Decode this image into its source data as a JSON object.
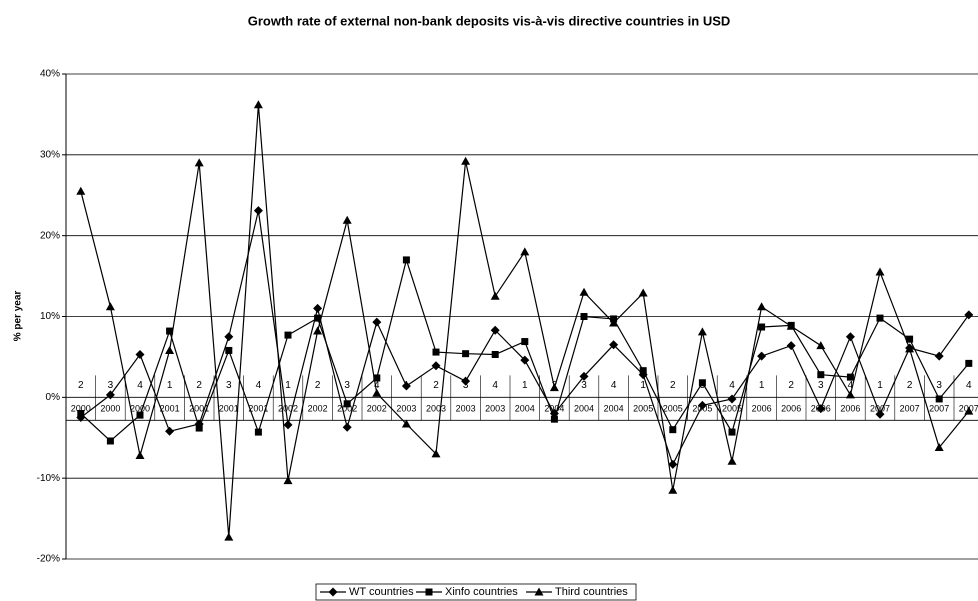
{
  "chart_data": {
    "type": "line",
    "title": "Growth rate of external non-bank deposits vis-à-vis directive countries in USD",
    "y_label": "% per year",
    "categories": [
      "2",
      "3",
      "4",
      "1",
      "2",
      "3",
      "4",
      "1",
      "2",
      "3",
      "4",
      "1",
      "2",
      "3",
      "4",
      "1",
      "2",
      "3",
      "4",
      "1",
      "2",
      "3",
      "4",
      "1",
      "2",
      "3",
      "4",
      "1",
      "2",
      "3",
      "4"
    ],
    "category_groups": [
      "2000",
      "2000",
      "2000",
      "2001",
      "2001",
      "2001",
      "2001",
      "2002",
      "2002",
      "2002",
      "2002",
      "2003",
      "2003",
      "2003",
      "2003",
      "2004",
      "2004",
      "2004",
      "2004",
      "2005",
      "2005",
      "2005",
      "2005",
      "2006",
      "2006",
      "2006",
      "2006",
      "2007",
      "2007",
      "2007",
      "2007"
    ],
    "series": [
      {
        "name": "WT countries",
        "color": "#000000",
        "marker": "diamond",
        "values": [
          -2.5,
          0.3,
          5.3,
          -4.2,
          -3.3,
          7.5,
          23.1,
          -3.4,
          11.0,
          -3.7,
          9.3,
          1.4,
          3.9,
          2.0,
          8.3,
          4.6,
          -2.0,
          2.6,
          6.5,
          2.8,
          -8.3,
          -1.0,
          -0.2,
          5.1,
          6.4,
          -1.4,
          7.5,
          -2.1,
          6.1,
          5.1,
          10.2
        ]
      },
      {
        "name": "Xinfo countries",
        "color": "#000000",
        "marker": "square",
        "values": [
          -2.0,
          -5.4,
          -2.2,
          8.2,
          -3.8,
          5.8,
          -4.3,
          7.7,
          9.8,
          -0.8,
          2.4,
          17.0,
          5.6,
          5.4,
          5.3,
          6.9,
          -2.7,
          10.0,
          9.7,
          3.3,
          -4.0,
          1.8,
          -4.3,
          8.7,
          8.9,
          2.8,
          2.5,
          9.8,
          7.2,
          -0.2,
          4.2
        ]
      },
      {
        "name": "Third countries",
        "color": "#000000",
        "marker": "triangle",
        "values": [
          25.5,
          11.2,
          -7.2,
          5.8,
          29.0,
          -17.3,
          36.2,
          -10.3,
          8.2,
          21.9,
          0.5,
          -3.3,
          -7.0,
          29.2,
          12.5,
          18.0,
          1.2,
          13.0,
          9.2,
          12.9,
          -11.5,
          8.1,
          -7.9,
          11.2,
          8.8,
          6.4,
          0.3,
          15.5,
          6.0,
          -6.2,
          -1.7
        ]
      }
    ],
    "ylim": [
      -20,
      40
    ],
    "yticks": [
      {
        "value": -20,
        "label": "-20%"
      },
      {
        "value": -10,
        "label": "-10%"
      },
      {
        "value": 0,
        "label": "0%"
      },
      {
        "value": 10,
        "label": "10%"
      },
      {
        "value": 20,
        "label": "20%"
      },
      {
        "value": 30,
        "label": "30%"
      },
      {
        "value": 40,
        "label": "40%"
      }
    ],
    "grid": true,
    "legend": "bottom"
  }
}
